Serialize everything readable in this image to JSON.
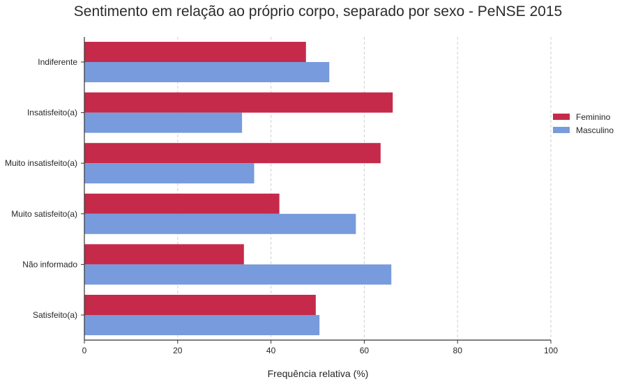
{
  "chart_data": {
    "type": "bar",
    "orientation": "horizontal",
    "title": "Sentimento em relação ao próprio corpo, separado por sexo - PeNSE 2015",
    "xlabel": "Frequência relativa (%)",
    "ylabel": "",
    "xlim": [
      0,
      100
    ],
    "x_ticks": [
      "0",
      "20",
      "40",
      "60",
      "80",
      "100"
    ],
    "grid": "vertical dashed",
    "legend_position": "right",
    "categories": [
      "Indiferente",
      "Insatisfeito(a)",
      "Muito insatisfeito(a)",
      "Muito satisfeito(a)",
      "Não informado",
      "Satisfeito(a)"
    ],
    "series": [
      {
        "name": "Feminino",
        "color": "#c52a4a",
        "values": [
          47.5,
          66.1,
          63.5,
          41.8,
          34.2,
          49.6
        ]
      },
      {
        "name": "Masculino",
        "color": "#779bdc",
        "values": [
          52.5,
          33.8,
          36.4,
          58.2,
          65.8,
          50.4
        ]
      }
    ]
  }
}
